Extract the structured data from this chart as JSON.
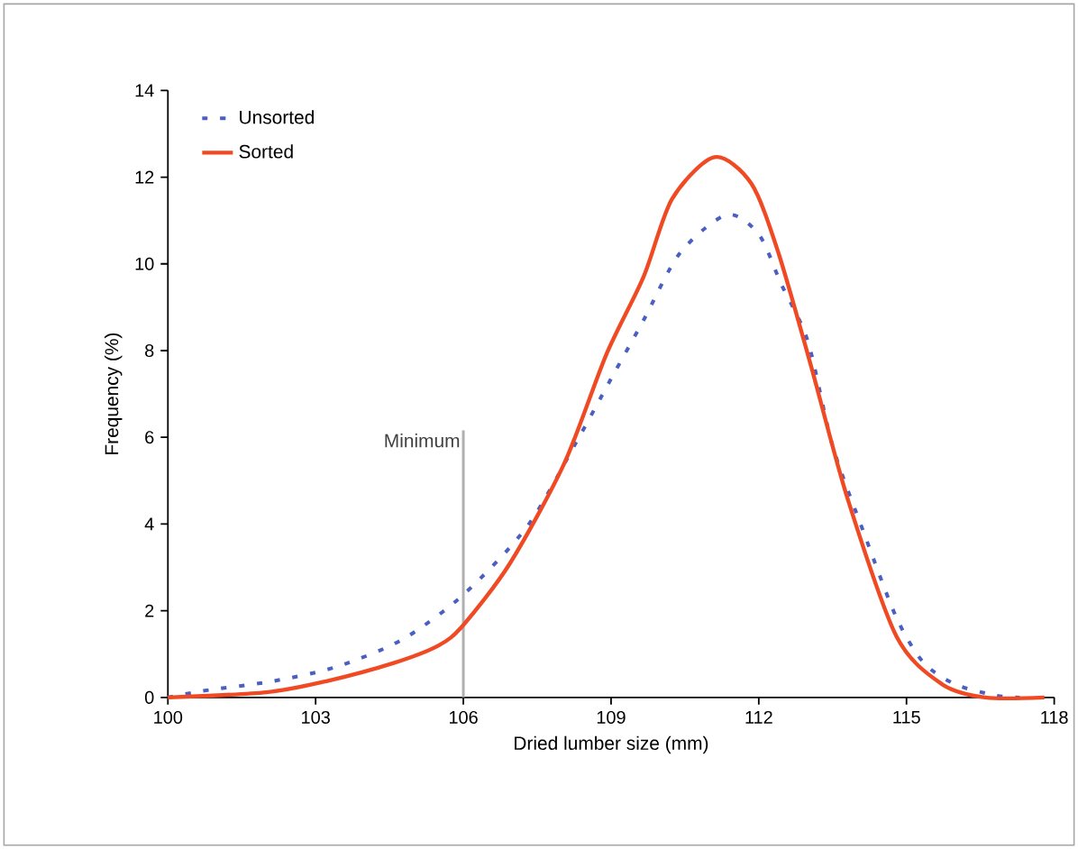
{
  "chart_data": {
    "type": "line",
    "xlabel": "Dried lumber size (mm)",
    "ylabel": "Frequency (%)",
    "xlim": [
      100,
      118
    ],
    "xticks": [
      100,
      103,
      106,
      109,
      112,
      115,
      118
    ],
    "ylim": [
      0,
      14
    ],
    "yticks": [
      0,
      2,
      4,
      6,
      8,
      10,
      12,
      14
    ],
    "grid": false,
    "legend": "top left",
    "marker": "none",
    "series": [
      {
        "name": "Unsorted",
        "color": "#4a5fc1",
        "line_style": "dashed",
        "x": [
          100,
          100.7,
          102.1,
          103.4,
          104.75,
          106,
          107.3,
          108.3,
          109,
          109.66,
          110.4,
          111.35,
          112,
          112.45,
          113,
          113.5,
          114.15,
          114.8,
          115.35,
          116,
          116.8,
          117.3
        ],
        "values": [
          0,
          0.15,
          0.37,
          0.7,
          1.33,
          2.37,
          3.95,
          5.9,
          7.35,
          8.7,
          10.25,
          11.13,
          10.68,
          9.55,
          8.2,
          5.8,
          3.75,
          1.83,
          0.8,
          0.3,
          0.05,
          0
        ]
      },
      {
        "name": "Sorted",
        "color": "#f04a24",
        "line_style": "solid",
        "x": [
          100,
          102,
          103.2,
          104.6,
          105.5,
          106,
          106.95,
          108.05,
          108.9,
          109.66,
          110.24,
          111.1,
          111.85,
          112.4,
          113.06,
          113.8,
          114.8,
          115.73,
          116.6,
          117.8
        ],
        "values": [
          0,
          0.12,
          0.37,
          0.8,
          1.2,
          1.67,
          3.1,
          5.4,
          7.9,
          9.7,
          11.5,
          12.46,
          11.85,
          10.25,
          7.65,
          4.6,
          1.4,
          0.3,
          0,
          0
        ]
      }
    ],
    "ref_lines": [
      {
        "axis": "x",
        "value": 106,
        "label": "Minimum",
        "color": "#b0b0b0"
      }
    ]
  }
}
